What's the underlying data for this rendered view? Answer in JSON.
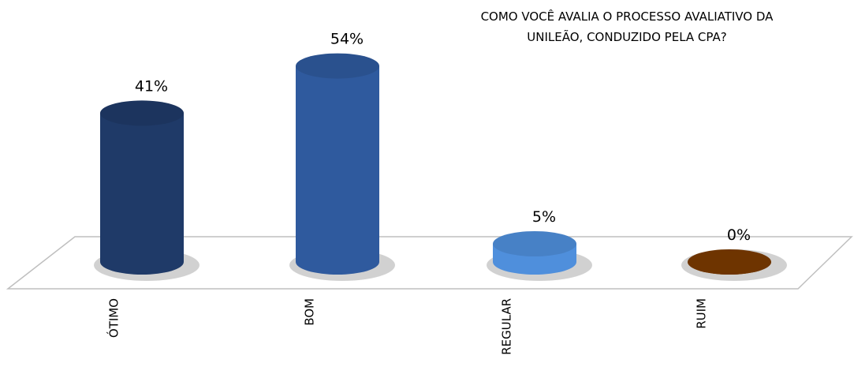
{
  "chart_data": {
    "type": "bar3d",
    "title": [
      "COMO VOCÊ AVALIA O PROCESSO AVALIATIVO DA",
      "UNILEÃO, CONDUZIDO PELA CPA?"
    ],
    "categories": [
      "ÓTIMO",
      "BOM",
      "REGULAR",
      "RUIM"
    ],
    "values": [
      41,
      54,
      5,
      0
    ],
    "value_labels": [
      "41%",
      "54%",
      "5%",
      "0%"
    ],
    "colors": [
      "#1f3a68",
      "#2f5a9e",
      "#4f8fdc",
      "#7a3a00"
    ]
  }
}
